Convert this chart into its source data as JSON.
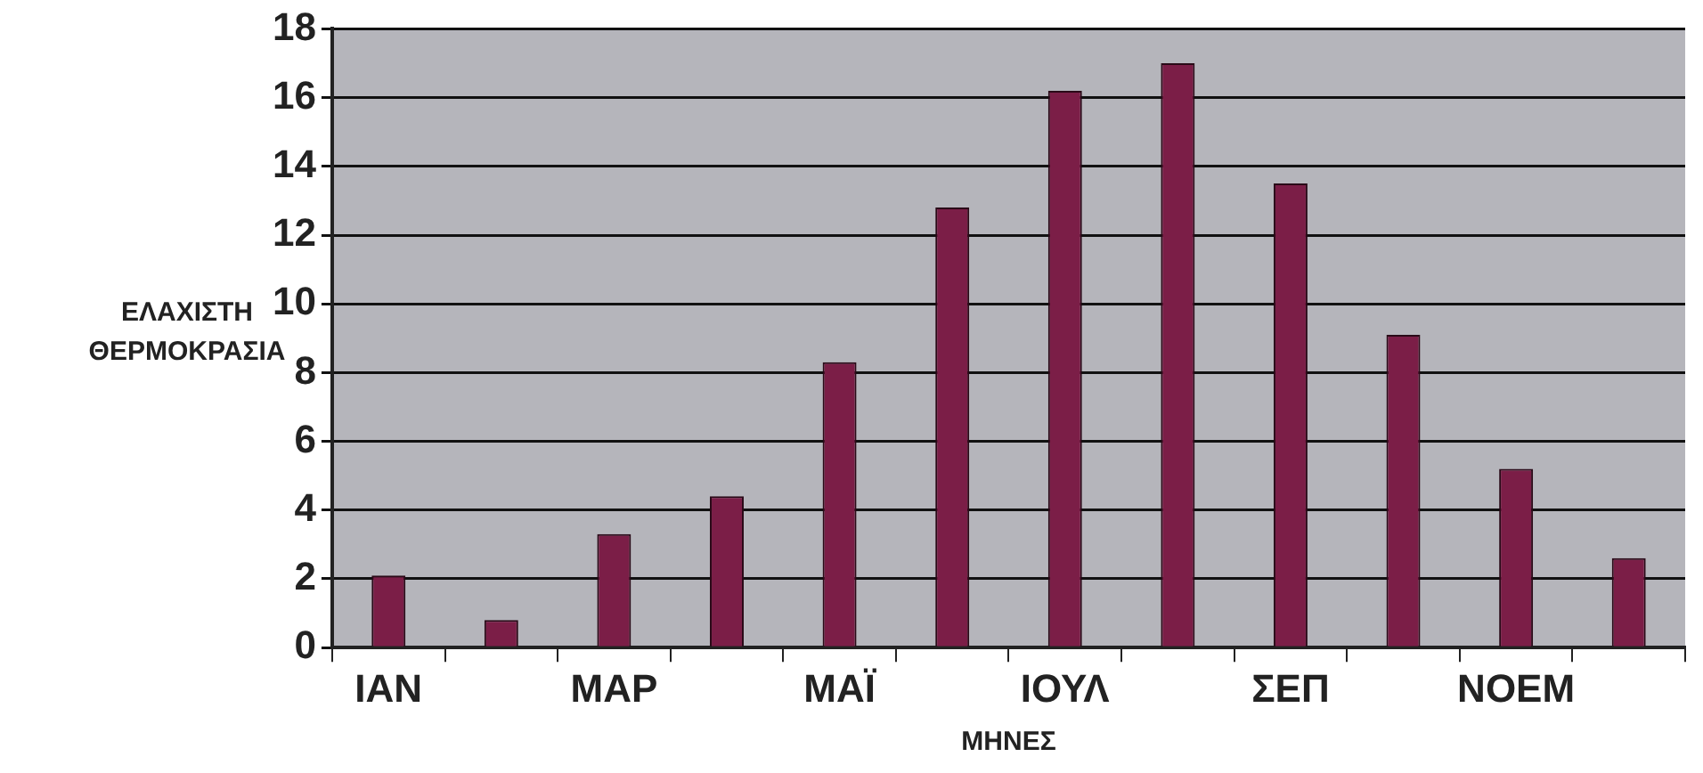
{
  "chart_data": {
    "type": "bar",
    "xlabel": "ΜΗΝΕΣ",
    "ylabel": "ΕΛΑΧΙΣΤΗ ΘΕΡΜΟΚΡΑΣΙΑ",
    "categories": [
      "ΙΑΝ",
      null,
      "ΜΑΡ",
      null,
      "ΜΑΪ",
      null,
      "ΙΟΥΛ",
      null,
      "ΣΕΠ",
      null,
      "ΝΟΕΜ",
      null
    ],
    "values": [
      2.1,
      0.8,
      3.3,
      4.4,
      8.3,
      12.8,
      16.2,
      17.0,
      13.5,
      9.1,
      5.2,
      2.6
    ],
    "color": "#7b1e47",
    "ylim": [
      0,
      18
    ],
    "yticks": [
      0,
      2,
      4,
      6,
      8,
      10,
      12,
      14,
      16,
      18
    ],
    "grid": "y"
  }
}
